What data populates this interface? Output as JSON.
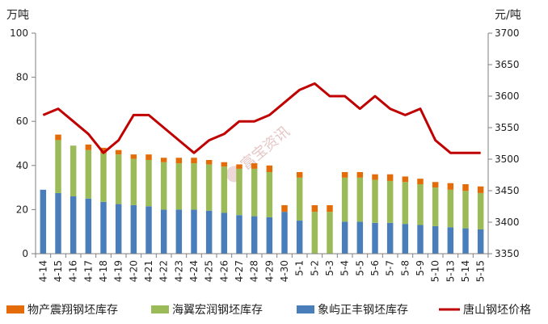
{
  "chart_data": {
    "type": "bar",
    "categories": [
      "4-14",
      "4-15",
      "4-16",
      "4-17",
      "4-18",
      "4-19",
      "4-20",
      "4-21",
      "4-22",
      "4-23",
      "4-24",
      "4-25",
      "4-26",
      "4-27",
      "4-28",
      "4-29",
      "4-30",
      "5-1",
      "5-2",
      "5-3",
      "5-4",
      "5-5",
      "5-6",
      "5-7",
      "5-8",
      "5-9",
      "5-10",
      "5-13",
      "5-14",
      "5-15"
    ],
    "y_left": {
      "unit": "万吨",
      "min": 0,
      "max": 100,
      "ticks": [
        0,
        20,
        40,
        60,
        80,
        100
      ]
    },
    "y_right": {
      "unit": "元/吨",
      "min": 3350,
      "max": 3700,
      "ticks": [
        3350,
        3400,
        3450,
        3500,
        3550,
        3600,
        3650,
        3700
      ]
    },
    "grid": false,
    "legend_position": "bottom",
    "watermark": "富宝资讯",
    "series": [
      {
        "name": "象屿正丰钢坯库存",
        "kind": "bar",
        "axis": "left",
        "color": "#4a7ebb",
        "values": [
          29,
          27.5,
          26,
          25,
          23.5,
          22.5,
          22,
          21.5,
          20,
          20,
          20,
          19.5,
          18.5,
          17.5,
          17,
          16.5,
          19,
          15,
          0,
          0,
          14.5,
          14.5,
          14,
          14,
          13.5,
          13,
          12.5,
          12,
          11.5,
          11
        ]
      },
      {
        "name": "海翼宏润钢坯库存",
        "kind": "bar",
        "axis": "left",
        "color": "#9bbb59",
        "values": [
          0,
          24,
          23,
          22,
          22,
          22.5,
          21,
          21,
          21.5,
          21,
          21,
          21,
          21,
          21,
          21.5,
          20.5,
          0,
          19.5,
          19,
          19,
          20,
          20,
          19.5,
          19,
          19,
          18.5,
          17.5,
          17,
          17,
          16.5
        ]
      },
      {
        "name": "物产震翔钢坯库存",
        "kind": "bar",
        "axis": "left",
        "color": "#e36c09",
        "values": [
          0,
          2.5,
          0,
          2.5,
          2.5,
          2,
          2,
          2.5,
          2,
          2.5,
          2.5,
          2,
          2,
          2,
          2.5,
          3,
          3,
          2.5,
          3,
          3,
          2.5,
          2.5,
          2.5,
          3,
          2.5,
          2.5,
          2.5,
          3,
          3,
          3
        ]
      },
      {
        "name": "唐山钢坯价格",
        "kind": "line",
        "axis": "right",
        "color": "#c00000",
        "values": [
          3570,
          3580,
          3560,
          3540,
          3510,
          3530,
          3570,
          3570,
          3550,
          3530,
          3510,
          3530,
          3540,
          3560,
          3560,
          3570,
          3590,
          3610,
          3620,
          3600,
          3600,
          3580,
          3600,
          3580,
          3570,
          3580,
          3530,
          3510,
          3510,
          3510
        ]
      }
    ]
  }
}
